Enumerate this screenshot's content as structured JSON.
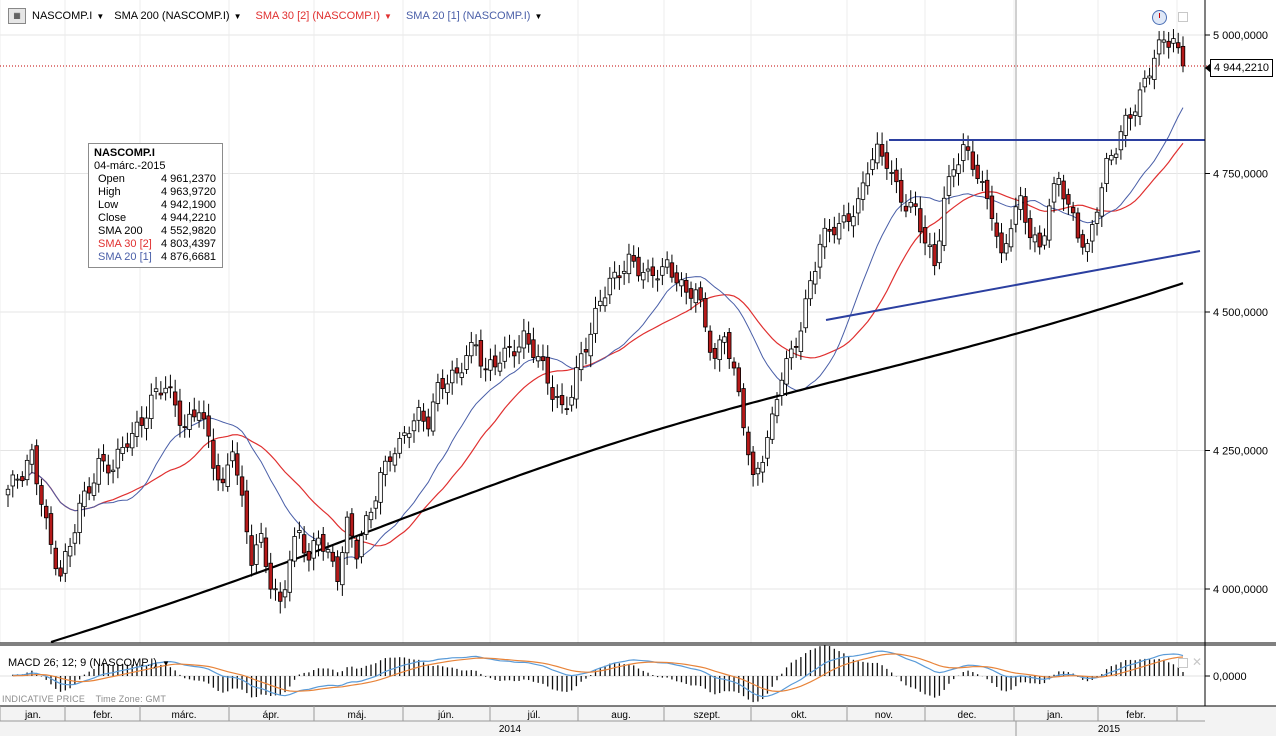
{
  "toolbar": {
    "menu_icon": "grid-menu-icon",
    "symbol": "NASCOMP.I",
    "sma200": "SMA 200 (NASCOMP.I)",
    "sma30": "SMA 30 [2] (NASCOMP.I)",
    "sma20": "SMA 20 [1] (NASCOMP.I)",
    "clock_icon": "clock-icon",
    "restore_icon": "restore-icon"
  },
  "colors": {
    "candle_up": "#ffffff",
    "candle_down": "#b51a1a",
    "sma200": "#000000",
    "sma30": "#e03030",
    "sma20": "#4a5fa8",
    "trendline": "#2b3fa0",
    "macd_line": "#5a9bd8",
    "signal_line": "#e8843a",
    "last_price_line": "#c00000"
  },
  "legend": {
    "title": "NASCOMP.I",
    "date": "04-márc.-2015",
    "rows": [
      {
        "label": "Open",
        "value": "4 961,2370"
      },
      {
        "label": "High",
        "value": "4 963,9720"
      },
      {
        "label": "Low",
        "value": "4 942,1900"
      },
      {
        "label": "Close",
        "value": "4 944,2210"
      },
      {
        "label": "SMA 200",
        "value": "4 552,9820"
      },
      {
        "label": "SMA 30 [2]",
        "value": "4 803,4397"
      },
      {
        "label": "SMA 20 [1]",
        "value": "4 876,6681"
      }
    ]
  },
  "last_price": "4 944,2210",
  "macd": {
    "label": "MACD 26; 12; 9 (NASCOMP.I)",
    "zero_label": "0,0000"
  },
  "footer": {
    "indicative": "INDICATIVE PRICE",
    "timezone": "Time Zone: GMT"
  },
  "chart_data": {
    "type": "candlestick",
    "title": "NASCOMP.I",
    "y_ticks": [
      "5 000,0000",
      "4 750,0000",
      "4 500,0000",
      "4 250,0000",
      "4 000,0000"
    ],
    "y_tick_values": [
      5000,
      4750,
      4500,
      4250,
      4000
    ],
    "ylim": [
      3900,
      5060
    ],
    "month_labels": [
      "jan.",
      "febr.",
      "márc.",
      "ápr.",
      "máj.",
      "jún.",
      "júl.",
      "aug.",
      "szept.",
      "okt.",
      "nov.",
      "dec.",
      "jan.",
      "febr."
    ],
    "years": [
      "2014",
      "2015"
    ],
    "grid": true,
    "last_close": 4944.22,
    "close_anchors": [
      [
        0,
        4180
      ],
      [
        3,
        4200
      ],
      [
        5,
        4240
      ],
      [
        7,
        4170
      ],
      [
        9,
        4080
      ],
      [
        11,
        4020
      ],
      [
        13,
        4070
      ],
      [
        15,
        4150
      ],
      [
        17,
        4190
      ],
      [
        19,
        4230
      ],
      [
        22,
        4210
      ],
      [
        25,
        4270
      ],
      [
        28,
        4310
      ],
      [
        30,
        4340
      ],
      [
        33,
        4360
      ],
      [
        35,
        4330
      ],
      [
        37,
        4300
      ],
      [
        40,
        4330
      ],
      [
        43,
        4220
      ],
      [
        45,
        4180
      ],
      [
        47,
        4270
      ],
      [
        49,
        4160
      ],
      [
        51,
        4050
      ],
      [
        53,
        4080
      ],
      [
        55,
        4010
      ],
      [
        57,
        3980
      ],
      [
        59,
        4060
      ],
      [
        61,
        4100
      ],
      [
        63,
        4040
      ],
      [
        65,
        4100
      ],
      [
        67,
        4070
      ],
      [
        69,
        4030
      ],
      [
        71,
        4110
      ],
      [
        73,
        4060
      ],
      [
        76,
        4150
      ],
      [
        78,
        4210
      ],
      [
        80,
        4240
      ],
      [
        82,
        4250
      ],
      [
        84,
        4290
      ],
      [
        86,
        4320
      ],
      [
        88,
        4310
      ],
      [
        90,
        4360
      ],
      [
        92,
        4370
      ],
      [
        94,
        4380
      ],
      [
        96,
        4430
      ],
      [
        98,
        4450
      ],
      [
        100,
        4390
      ],
      [
        102,
        4400
      ],
      [
        104,
        4420
      ],
      [
        106,
        4440
      ],
      [
        108,
        4460
      ],
      [
        110,
        4430
      ],
      [
        112,
        4390
      ],
      [
        114,
        4350
      ],
      [
        116,
        4330
      ],
      [
        118,
        4360
      ],
      [
        120,
        4420
      ],
      [
        122,
        4450
      ],
      [
        124,
        4520
      ],
      [
        126,
        4560
      ],
      [
        128,
        4580
      ],
      [
        130,
        4590
      ],
      [
        132,
        4570
      ],
      [
        134,
        4560
      ],
      [
        136,
        4580
      ],
      [
        138,
        4590
      ],
      [
        140,
        4560
      ],
      [
        142,
        4520
      ],
      [
        144,
        4540
      ],
      [
        146,
        4480
      ],
      [
        148,
        4420
      ],
      [
        150,
        4460
      ],
      [
        152,
        4380
      ],
      [
        154,
        4300
      ],
      [
        156,
        4200
      ],
      [
        158,
        4250
      ],
      [
        160,
        4300
      ],
      [
        162,
        4380
      ],
      [
        164,
        4420
      ],
      [
        166,
        4480
      ],
      [
        168,
        4560
      ],
      [
        170,
        4620
      ],
      [
        172,
        4640
      ],
      [
        174,
        4650
      ],
      [
        176,
        4680
      ],
      [
        178,
        4700
      ],
      [
        180,
        4760
      ],
      [
        182,
        4780
      ],
      [
        184,
        4770
      ],
      [
        186,
        4730
      ],
      [
        188,
        4700
      ],
      [
        190,
        4680
      ],
      [
        192,
        4620
      ],
      [
        194,
        4580
      ],
      [
        196,
        4710
      ],
      [
        198,
        4770
      ],
      [
        200,
        4790
      ],
      [
        202,
        4760
      ],
      [
        204,
        4720
      ],
      [
        206,
        4690
      ],
      [
        208,
        4600
      ],
      [
        210,
        4660
      ],
      [
        212,
        4690
      ],
      [
        214,
        4640
      ],
      [
        216,
        4620
      ],
      [
        218,
        4700
      ],
      [
        220,
        4740
      ],
      [
        222,
        4680
      ],
      [
        224,
        4640
      ],
      [
        226,
        4620
      ],
      [
        228,
        4700
      ],
      [
        230,
        4760
      ],
      [
        232,
        4790
      ],
      [
        234,
        4840
      ],
      [
        236,
        4880
      ],
      [
        238,
        4920
      ],
      [
        240,
        4960
      ],
      [
        242,
        4980
      ],
      [
        244,
        4990
      ],
      [
        246,
        4944
      ]
    ],
    "series": [
      {
        "name": "NASCOMP.I",
        "style": "candles"
      },
      {
        "name": "SMA 200",
        "style": "line"
      },
      {
        "name": "SMA 30 [2]",
        "style": "line"
      },
      {
        "name": "SMA 20 [1]",
        "style": "line"
      },
      {
        "name": "MACD 26; 12; 9",
        "style": "histogram+lines"
      }
    ],
    "trendlines": [
      {
        "from": [
          180,
          4810
        ],
        "to": [
          246,
          4810
        ],
        "kind": "horizontal resistance"
      },
      {
        "from": [
          166,
          4480
        ],
        "to": [
          246,
          4605
        ],
        "kind": "rising support"
      }
    ]
  }
}
